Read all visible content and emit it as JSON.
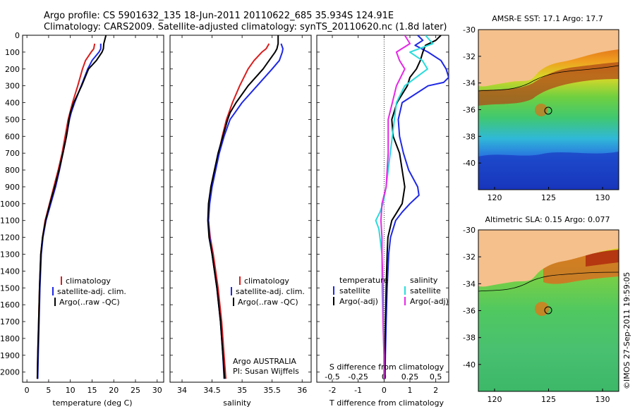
{
  "header": {
    "line1": "Argo profile: CS 5901632_135 18-Jun-2011 20110622_685 35.934S 124.91E",
    "line2": "Climatology: CARS2009. Satellite-adjusted climatology: synTS_20110620.nc (1.8d later)"
  },
  "footer_stamp": "©IMOS 27-Sep-2011 19:59:05",
  "colors": {
    "climatology": "#d81e1e",
    "satellite": "#1e28e6",
    "argo": "#000000",
    "s_satellite": "#28dcdc",
    "s_argo": "#e628e6",
    "land": "#f5c08c"
  },
  "depth_axis": {
    "ticks": [
      0,
      100,
      200,
      300,
      400,
      500,
      600,
      700,
      800,
      900,
      1000,
      1100,
      1200,
      1300,
      1400,
      1500,
      1600,
      1700,
      1800,
      1900,
      2000
    ],
    "range": [
      0,
      2060
    ]
  },
  "chart_data": [
    {
      "type": "line",
      "id": "temperature",
      "xlabel": "temperature (deg C)",
      "xlim": [
        -1,
        31.5
      ],
      "xticks": [
        0,
        5,
        10,
        15,
        20,
        25,
        30
      ],
      "legend": [
        "climatology",
        "satellite-adj. clim.",
        "Argo(..raw -QC)"
      ],
      "series": [
        {
          "name": "climatology",
          "depth": [
            50,
            80,
            100,
            150,
            200,
            300,
            400,
            460,
            500,
            600,
            700,
            800,
            900,
            1000,
            1100,
            1200,
            1300,
            1500,
            1700,
            1900,
            2040
          ],
          "values": [
            15.6,
            15.4,
            14.8,
            13.5,
            12.8,
            11.7,
            10.5,
            9.9,
            9.5,
            8.8,
            8.1,
            7.2,
            6.2,
            5.2,
            4.2,
            3.6,
            3.2,
            2.9,
            2.7,
            2.5,
            2.4
          ]
        },
        {
          "name": "satellite-adj. clim.",
          "depth": [
            50,
            80,
            100,
            150,
            200,
            300,
            400,
            460,
            500,
            600,
            700,
            800,
            900,
            1000,
            1100,
            1200,
            1300,
            1500,
            1700,
            1900,
            2040
          ],
          "values": [
            17.0,
            17.0,
            16.6,
            15.0,
            14.0,
            12.5,
            11.0,
            10.2,
            9.8,
            9.1,
            8.3,
            7.5,
            6.6,
            5.5,
            4.4,
            3.7,
            3.3,
            3.0,
            2.8,
            2.6,
            2.5
          ]
        },
        {
          "name": "Argo(..raw -QC)",
          "depth": [
            0,
            50,
            80,
            100,
            150,
            200,
            300,
            400,
            460,
            500,
            600,
            700,
            800,
            900,
            1000,
            1100,
            1200,
            1300,
            1500,
            1700,
            1900,
            2040
          ],
          "values": [
            18.2,
            17.7,
            17.6,
            17.3,
            16.0,
            14.2,
            12.6,
            10.8,
            10.0,
            9.7,
            9.1,
            8.3,
            7.4,
            6.4,
            5.3,
            4.3,
            3.6,
            3.2,
            2.9,
            2.7,
            2.5,
            2.4
          ]
        }
      ]
    },
    {
      "type": "line",
      "id": "salinity",
      "xlabel": "salinity",
      "xlim": [
        33.8,
        36.15
      ],
      "xticks": [
        34,
        34.5,
        35,
        35.5,
        36
      ],
      "legend": [
        "climatology",
        "satellite-adj. clim.",
        "Argo(..raw -QC)"
      ],
      "annotation": [
        "Argo AUSTRALIA",
        "PI: Susan Wijffels"
      ],
      "series": [
        {
          "name": "climatology",
          "depth": [
            50,
            80,
            100,
            150,
            200,
            300,
            400,
            460,
            500,
            600,
            700,
            800,
            900,
            1000,
            1100,
            1200,
            1300,
            1500,
            1700,
            1900,
            2040
          ],
          "values": [
            35.45,
            35.4,
            35.33,
            35.2,
            35.1,
            34.96,
            34.84,
            34.78,
            34.74,
            34.67,
            34.61,
            34.54,
            34.48,
            34.45,
            34.44,
            34.47,
            34.52,
            34.6,
            34.66,
            34.7,
            34.73
          ]
        },
        {
          "name": "satellite-adj. clim.",
          "depth": [
            50,
            80,
            100,
            150,
            200,
            300,
            400,
            460,
            500,
            600,
            700,
            800,
            900,
            1000,
            1100,
            1200,
            1300,
            1500,
            1700,
            1900,
            2040
          ],
          "values": [
            35.65,
            35.68,
            35.67,
            35.62,
            35.5,
            35.25,
            35.0,
            34.88,
            34.8,
            34.7,
            34.62,
            34.56,
            34.5,
            34.46,
            34.44,
            34.46,
            34.5,
            34.58,
            34.64,
            34.68,
            34.7
          ]
        },
        {
          "name": "Argo(..raw -QC)",
          "depth": [
            0,
            50,
            80,
            100,
            150,
            200,
            300,
            400,
            460,
            500,
            600,
            700,
            800,
            900,
            1000,
            1100,
            1200,
            1300,
            1500,
            1700,
            1900,
            2040
          ],
          "values": [
            35.6,
            35.6,
            35.58,
            35.55,
            35.45,
            35.35,
            35.1,
            34.9,
            34.8,
            34.76,
            34.68,
            34.6,
            34.54,
            34.48,
            34.44,
            34.43,
            34.45,
            34.5,
            34.58,
            34.64,
            34.68,
            34.71
          ]
        }
      ]
    },
    {
      "type": "line",
      "id": "difference",
      "xlabel": "T difference from climatology",
      "xlabel2": "S difference from climatology",
      "xlim": [
        -2.6,
        2.5
      ],
      "xticks": [
        -2,
        -1,
        0,
        1,
        2
      ],
      "xticks2": [
        -0.5,
        -0.25,
        0,
        0.25,
        0.5
      ],
      "legend_headers": [
        "temperature",
        "salinity"
      ],
      "legend": [
        "satellite",
        "Argo(-adj)",
        "satellite",
        "Argo(-adj)"
      ],
      "series": [
        {
          "name": "satellite",
          "depth": [
            0,
            30,
            60,
            100,
            150,
            200,
            250,
            280,
            300,
            400,
            500,
            600,
            700,
            800,
            900,
            950,
            1000,
            1050,
            1100,
            1200,
            1300,
            1500,
            1700,
            1900,
            2040
          ],
          "values": [
            1.3,
            1.5,
            1.2,
            1.7,
            2.2,
            2.4,
            2.5,
            2.3,
            1.7,
            0.7,
            0.55,
            0.6,
            0.75,
            0.95,
            1.3,
            1.35,
            1.0,
            0.7,
            0.45,
            0.25,
            0.18,
            0.12,
            0.08,
            0.05,
            0.04
          ]
        },
        {
          "name": "Argo(-adj)",
          "depth": [
            0,
            30,
            60,
            100,
            150,
            200,
            250,
            300,
            400,
            500,
            600,
            700,
            800,
            900,
            1000,
            1050,
            1100,
            1200,
            1300,
            1500,
            1700,
            1900,
            2040
          ],
          "values": [
            2.2,
            2.0,
            1.6,
            1.5,
            1.4,
            1.25,
            1.0,
            0.9,
            0.5,
            0.3,
            0.35,
            0.6,
            0.7,
            0.8,
            0.7,
            0.5,
            0.3,
            0.15,
            0.12,
            0.08,
            0.05,
            0.03,
            0.02
          ]
        },
        {
          "name": "satellite",
          "depth": [
            0,
            50,
            100,
            150,
            200,
            300,
            400,
            500,
            600,
            700,
            800,
            900,
            1000,
            1050,
            1100,
            1150,
            1200,
            1300,
            1500,
            1700,
            1900,
            2040
          ],
          "values": [
            0.4,
            0.47,
            0.25,
            0.37,
            0.42,
            0.2,
            0.12,
            0.1,
            0.08,
            0.06,
            0.04,
            0.02,
            -0.01,
            -0.04,
            -0.08,
            -0.05,
            -0.04,
            -0.02,
            -0.02,
            -0.01,
            0,
            0
          ]
        },
        {
          "name": "Argo(-adj)",
          "depth": [
            0,
            50,
            100,
            150,
            200,
            300,
            400,
            500,
            600,
            700,
            800,
            900,
            1000,
            1100,
            1200,
            1300,
            1500,
            1700,
            1900,
            2040
          ],
          "values": [
            0.2,
            0.25,
            0.12,
            0.15,
            0.2,
            0.12,
            0.08,
            0.04,
            0.04,
            0.04,
            0.03,
            0.02,
            -0.02,
            -0.03,
            -0.02,
            -0.02,
            -0.01,
            -0.01,
            0,
            0
          ]
        }
      ]
    },
    {
      "type": "heatmap",
      "id": "sst-map",
      "title": "AMSR-E SST: 17.1 Argo: 17.7",
      "xlim": [
        118.5,
        131.5
      ],
      "ylim": [
        -42,
        -30
      ],
      "xticks": [
        120,
        125,
        130
      ],
      "yticks": [
        -30,
        -32,
        -34,
        -36,
        -38,
        -40
      ],
      "marker": {
        "lon": 124.91,
        "lat": -35.934
      }
    },
    {
      "type": "heatmap",
      "id": "sla-map",
      "title": "Altimetric SLA: 0.15 Argo: 0.077",
      "xlim": [
        118.5,
        131.5
      ],
      "ylim": [
        -42,
        -30
      ],
      "xticks": [
        120,
        125,
        130
      ],
      "yticks": [
        -30,
        -32,
        -34,
        -36,
        -38,
        -40
      ],
      "marker": {
        "lon": 124.91,
        "lat": -35.934
      }
    }
  ]
}
